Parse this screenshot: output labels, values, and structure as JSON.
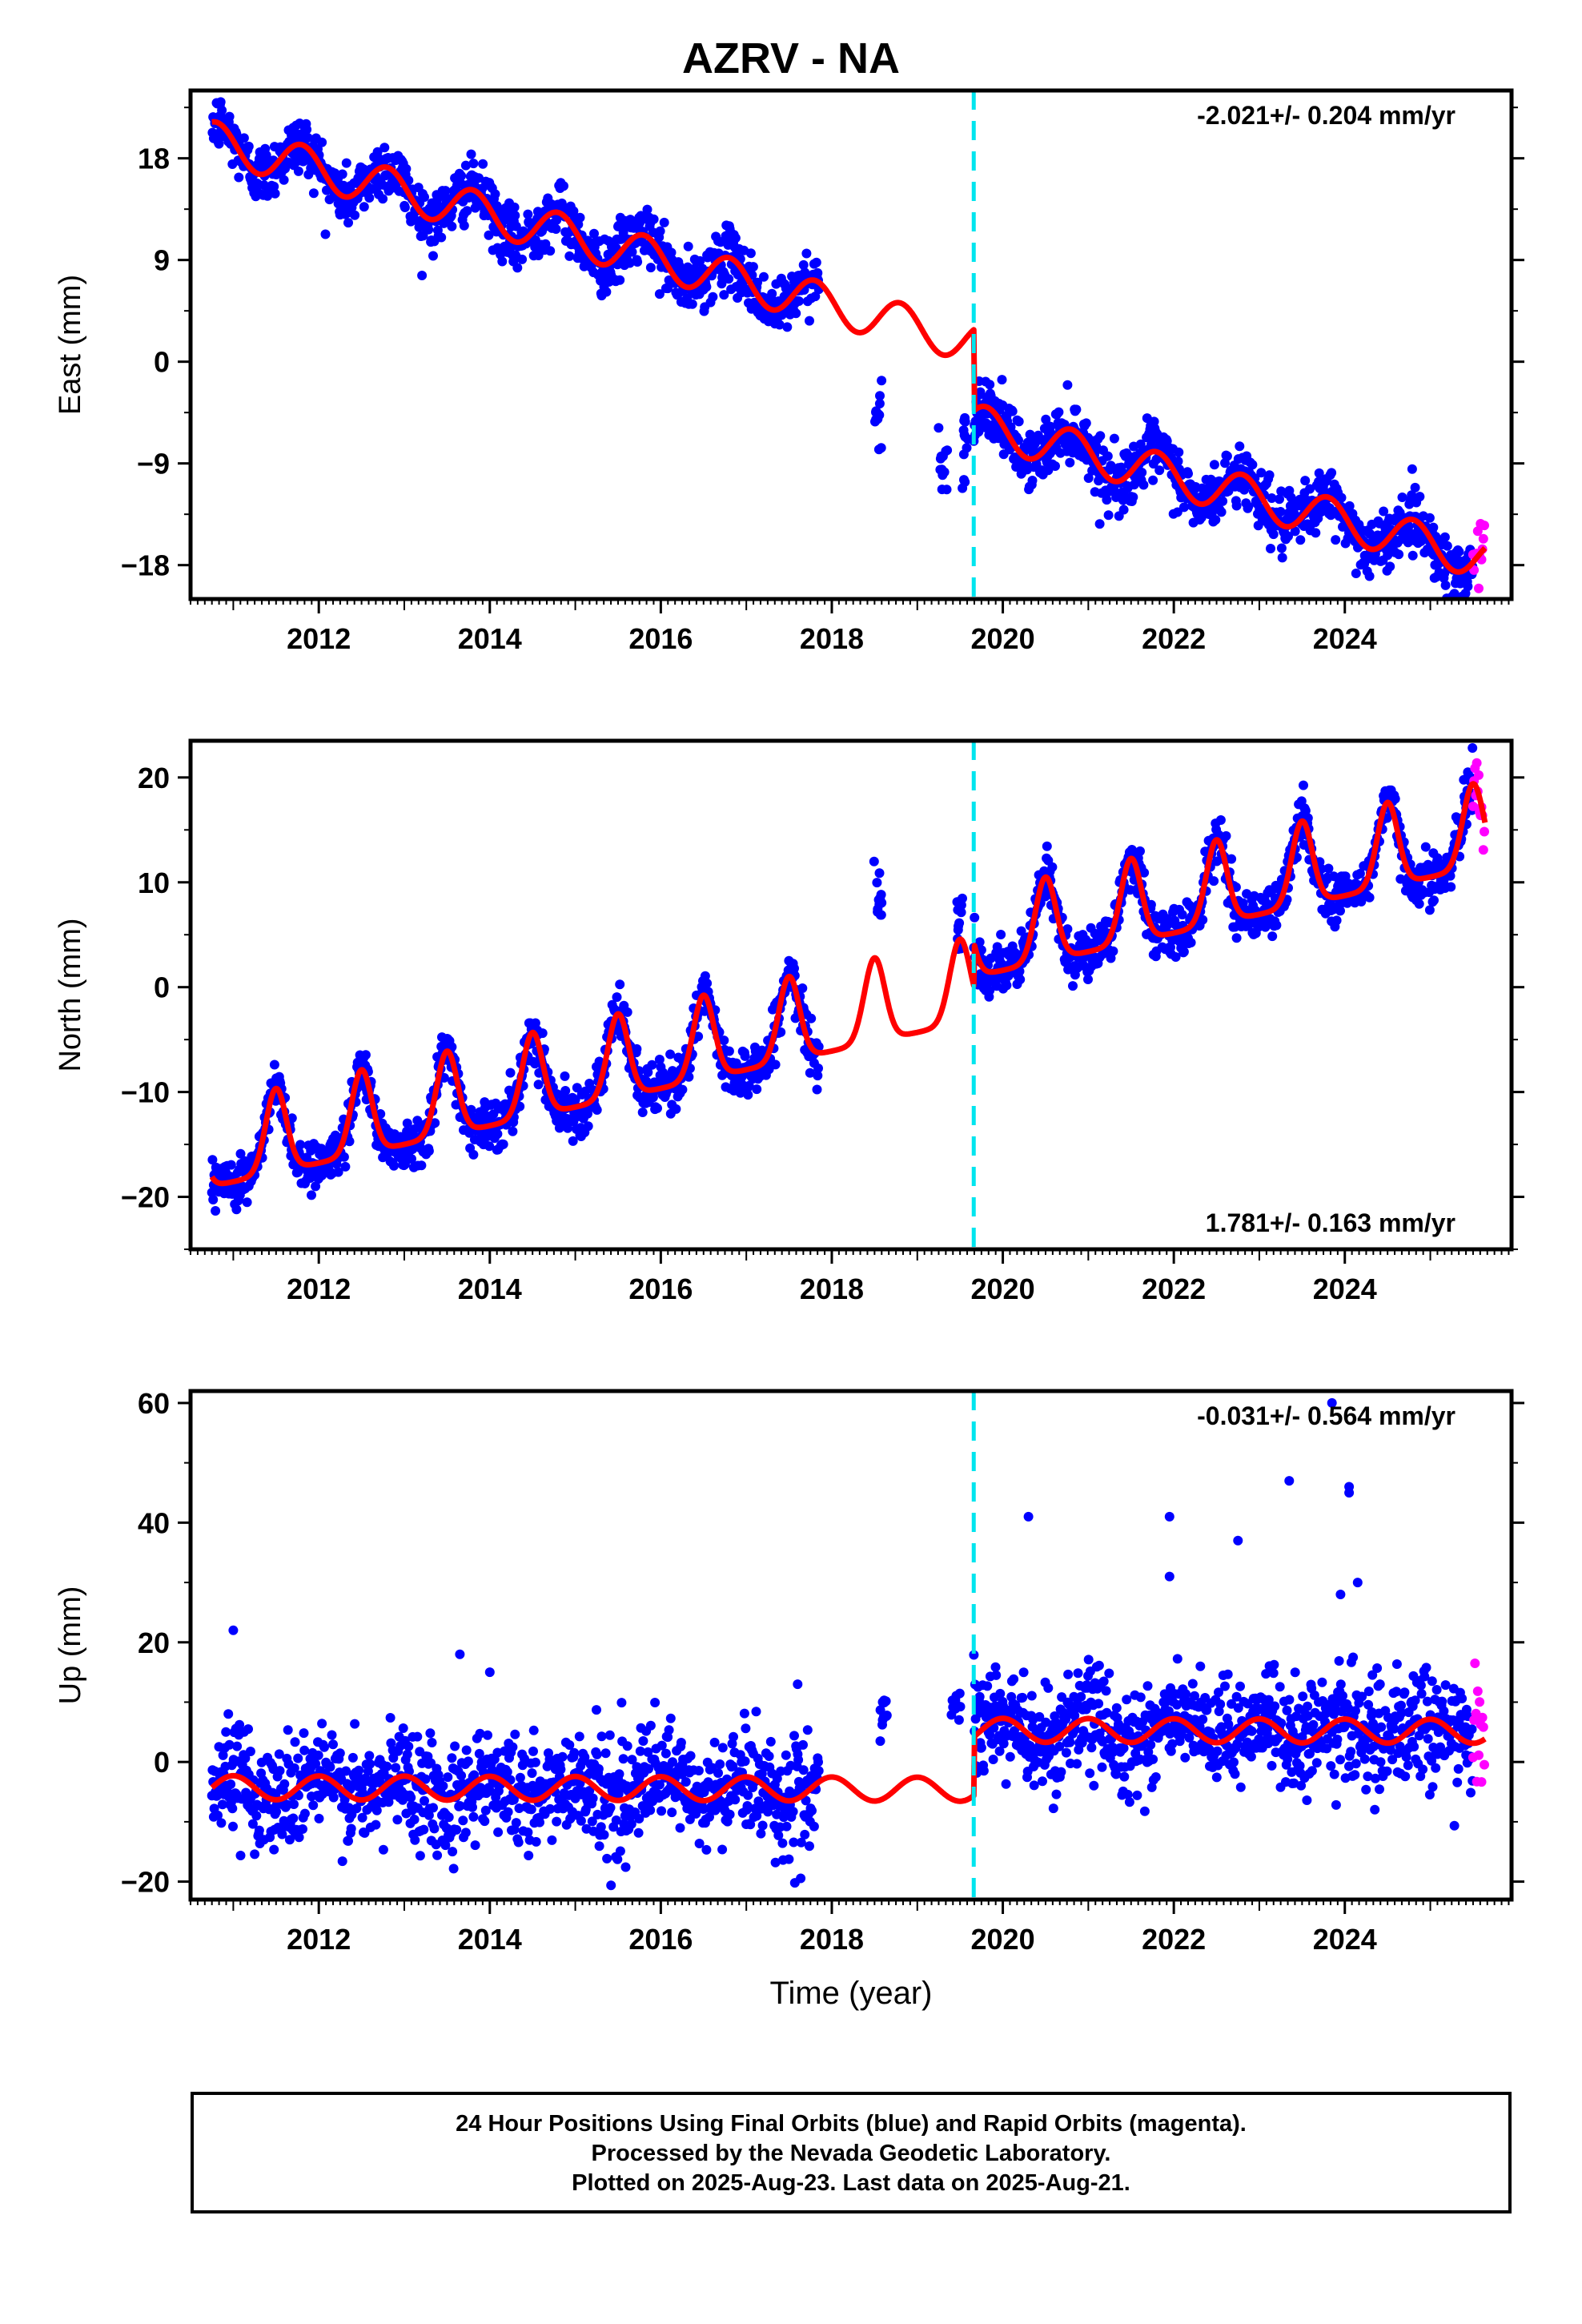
{
  "title": "AZRV - NA",
  "footer": {
    "line1": "24 Hour Positions Using Final Orbits (blue) and Rapid Orbits (magenta).",
    "line2": "Processed by the Nevada Geodetic Laboratory.",
    "line3": "Plotted on 2025-Aug-23. Last data on 2025-Aug-21."
  },
  "colors": {
    "final": "#0000ff",
    "rapid": "#ff00ff",
    "model": "#ff0000",
    "offset": "#00e5ee",
    "frame": "#000000"
  },
  "chart_data": [
    {
      "type": "scatter",
      "component": "east",
      "ylabel": "East (mm)",
      "xlabel": "",
      "rate_label": "-2.021+/- 0.204 mm/yr",
      "rate_position": "top-right",
      "xlim": [
        2010.5,
        2025.95
      ],
      "ylim": [
        -21,
        24
      ],
      "xticks": [
        2012,
        2014,
        2016,
        2018,
        2020,
        2022,
        2024
      ],
      "yticks": [
        18,
        9,
        0,
        -9,
        -18
      ],
      "offset_epoch": 2019.66,
      "data_start": 2010.75,
      "data_end": 2025.64,
      "rapid_start": 2025.5,
      "gap": [
        2017.85,
        2019.66
      ],
      "series": [
        {
          "name": "Final Orbits",
          "color": "#0000ff",
          "approx_scatter_mm": 1.3
        },
        {
          "name": "Rapid Orbits",
          "color": "#ff00ff"
        }
      ],
      "model": {
        "trend_pre": {
          "epoch": 2010.75,
          "value": 19.5,
          "rate": -2.0
        },
        "trend_post": {
          "epoch": 2019.66,
          "value": -5.5,
          "rate": -2.0
        },
        "annual_amplitude": 1.8,
        "annual_peak_phase": 0.8
      },
      "isolated_clusters": [
        {
          "x": 2018.55,
          "y": -5.0
        },
        {
          "x": 2019.3,
          "y": -9.3
        },
        {
          "x": 2019.55,
          "y": -6.5
        }
      ]
    },
    {
      "type": "scatter",
      "component": "north",
      "ylabel": "North (mm)",
      "xlabel": "",
      "rate_label": "1.781+/- 0.163 mm/yr",
      "rate_position": "bottom-right",
      "xlim": [
        2010.5,
        2025.95
      ],
      "ylim": [
        -25,
        23.5
      ],
      "xticks": [
        2012,
        2014,
        2016,
        2018,
        2020,
        2022,
        2024
      ],
      "yticks": [
        20,
        10,
        0,
        -10,
        -20
      ],
      "offset_epoch": 2019.66,
      "data_start": 2010.75,
      "data_end": 2025.64,
      "rapid_start": 2025.5,
      "gap": [
        2017.85,
        2019.66
      ],
      "series": [
        {
          "name": "Final Orbits",
          "color": "#0000ff",
          "approx_scatter_mm": 1.2
        },
        {
          "name": "Rapid Orbits",
          "color": "#ff00ff"
        }
      ],
      "model": {
        "trend_pre": {
          "epoch": 2010.75,
          "value": -19.0,
          "rate": 1.78
        },
        "trend_post": {
          "epoch": 2019.66,
          "value": 1.0,
          "rate": 1.78
        },
        "annual_peak_amplitude": 8.0,
        "annual_peak_phase": 0.5,
        "annual_peak_width": 0.12
      },
      "isolated_clusters": [
        {
          "x": 2018.55,
          "y": 9.0
        },
        {
          "x": 2019.5,
          "y": 6.0
        }
      ]
    },
    {
      "type": "scatter",
      "component": "up",
      "ylabel": "Up (mm)",
      "xlabel": "Time (year)",
      "rate_label": "-0.031+/- 0.564 mm/yr",
      "rate_position": "top-right",
      "xlim": [
        2010.5,
        2025.95
      ],
      "ylim": [
        -23,
        62
      ],
      "xticks": [
        2012,
        2014,
        2016,
        2018,
        2020,
        2022,
        2024
      ],
      "yticks": [
        60,
        40,
        20,
        0,
        -20
      ],
      "offset_epoch": 2019.66,
      "data_start": 2010.75,
      "data_end": 2025.64,
      "rapid_start": 2025.5,
      "gap": [
        2017.85,
        2019.66
      ],
      "series": [
        {
          "name": "Final Orbits",
          "color": "#0000ff",
          "approx_scatter_mm": 4.5
        },
        {
          "name": "Rapid Orbits",
          "color": "#ff00ff"
        }
      ],
      "model": {
        "trend_pre": {
          "epoch": 2010.75,
          "value": -4.3,
          "rate": -0.03
        },
        "trend_post": {
          "epoch": 2019.66,
          "value": 5.3,
          "rate": -0.03
        },
        "annual_amplitude": 2.0,
        "annual_peak_phase": 0.0
      },
      "outliers": [
        {
          "x": 2020.3,
          "y": 41
        },
        {
          "x": 2021.95,
          "y": 41
        },
        {
          "x": 2021.95,
          "y": 31
        },
        {
          "x": 2022.75,
          "y": 37
        },
        {
          "x": 2023.35,
          "y": 47
        },
        {
          "x": 2024.05,
          "y": 46
        },
        {
          "x": 2024.05,
          "y": 45
        },
        {
          "x": 2024.15,
          "y": 30
        },
        {
          "x": 2023.85,
          "y": 60
        },
        {
          "x": 2023.95,
          "y": 28
        },
        {
          "x": 2013.65,
          "y": 18
        },
        {
          "x": 2011.0,
          "y": 22
        },
        {
          "x": 2014.0,
          "y": 15
        },
        {
          "x": 2017.6,
          "y": 13
        }
      ],
      "isolated_clusters": [
        {
          "x": 2018.6,
          "y": 8.0
        },
        {
          "x": 2019.45,
          "y": 10.0
        }
      ]
    }
  ]
}
